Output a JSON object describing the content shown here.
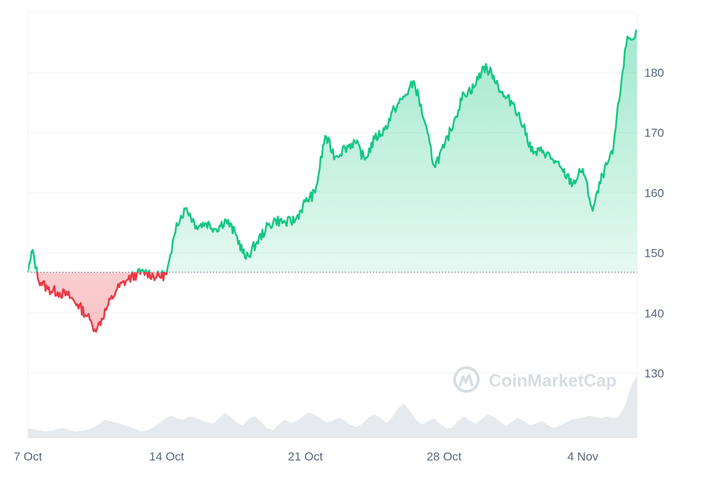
{
  "chart_data": {
    "type": "area",
    "xlabel": "",
    "ylabel": "",
    "x_ticks": [
      "7 Oct",
      "14 Oct",
      "21 Oct",
      "28 Oct",
      "4 Nov"
    ],
    "y_ticks": [
      130,
      140,
      150,
      160,
      170,
      180
    ],
    "ylim": [
      119,
      189
    ],
    "baseline": 146.8,
    "grid": true,
    "colors": {
      "up_line": "#16c784",
      "down_line": "#ea3943",
      "up_fill": "#16c784",
      "down_fill": "#ea3943",
      "grid": "#eff2f5",
      "axis_text": "#58667e",
      "volume": "#e6e9ee",
      "watermark": "#d8dde4"
    },
    "series": [
      {
        "x": [
          "2024-10-07 00:00",
          "2024-10-07 06:00",
          "2024-10-07 12:00",
          "2024-10-08 00:00",
          "2024-10-08 12:00",
          "2024-10-09 00:00",
          "2024-10-09 12:00",
          "2024-10-10 00:00",
          "2024-10-10 06:00",
          "2024-10-10 12:00",
          "2024-10-11 00:00",
          "2024-10-11 12:00",
          "2024-10-12 00:00",
          "2024-10-12 12:00",
          "2024-10-13 00:00",
          "2024-10-13 12:00",
          "2024-10-14 00:00",
          "2024-10-14 06:00",
          "2024-10-14 12:00",
          "2024-10-15 00:00",
          "2024-10-15 12:00",
          "2024-10-16 00:00",
          "2024-10-16 12:00",
          "2024-10-17 00:00",
          "2024-10-17 12:00",
          "2024-10-18 00:00",
          "2024-10-18 12:00",
          "2024-10-19 00:00",
          "2024-10-19 12:00",
          "2024-10-20 00:00",
          "2024-10-20 12:00",
          "2024-10-21 00:00",
          "2024-10-21 12:00",
          "2024-10-22 00:00",
          "2024-10-22 12:00",
          "2024-10-23 00:00",
          "2024-10-23 12:00",
          "2024-10-24 00:00",
          "2024-10-24 12:00",
          "2024-10-25 00:00",
          "2024-10-25 12:00",
          "2024-10-26 00:00",
          "2024-10-26 12:00",
          "2024-10-27 00:00",
          "2024-10-27 12:00",
          "2024-10-28 00:00",
          "2024-10-28 12:00",
          "2024-10-29 00:00",
          "2024-10-29 12:00",
          "2024-10-30 00:00",
          "2024-10-30 12:00",
          "2024-10-31 00:00",
          "2024-10-31 12:00",
          "2024-11-01 00:00",
          "2024-11-01 12:00",
          "2024-11-02 00:00",
          "2024-11-02 12:00",
          "2024-11-03 00:00",
          "2024-11-03 12:00",
          "2024-11-04 00:00",
          "2024-11-04 12:00",
          "2024-11-05 00:00",
          "2024-11-05 12:00",
          "2024-11-06 00:00",
          "2024-11-06 06:00",
          "2024-11-06 12:00",
          "2024-11-06 18:00"
        ],
        "values": [
          146.8,
          150.5,
          145.8,
          144.0,
          143.5,
          143.0,
          141.5,
          139.5,
          138.0,
          137.5,
          141.0,
          144.0,
          145.5,
          146.5,
          146.8,
          146.0,
          146.5,
          150.0,
          155.0,
          157.5,
          154.5,
          155.0,
          154.0,
          155.5,
          153.0,
          149.0,
          151.5,
          154.0,
          155.5,
          155.0,
          155.5,
          158.5,
          160.0,
          169.5,
          166.0,
          167.5,
          168.5,
          165.5,
          169.0,
          170.5,
          174.0,
          176.0,
          178.5,
          172.0,
          164.5,
          167.5,
          172.0,
          176.5,
          177.5,
          181.0,
          179.5,
          176.0,
          175.0,
          171.0,
          166.5,
          167.0,
          165.5,
          163.5,
          161.5,
          164.0,
          157.0,
          163.0,
          166.5,
          180.0,
          186.0,
          185.5,
          187.0
        ]
      }
    ],
    "volume": [
      1.5,
      1.3,
      1.2,
      1.0,
      1.1,
      1.4,
      1.6,
      1.2,
      1.0,
      1.1,
      1.3,
      1.6,
      2.2,
      2.8,
      2.5,
      2.3,
      2.0,
      1.7,
      1.4,
      1.0,
      1.2,
      1.6,
      2.3,
      3.0,
      3.4,
      3.0,
      2.8,
      3.3,
      3.1,
      2.7,
      2.4,
      2.2,
      3.0,
      3.8,
      3.2,
      2.3,
      1.9,
      3.0,
      3.3,
      2.5,
      1.5,
      1.2,
      2.1,
      2.8,
      2.3,
      2.6,
      3.3,
      3.9,
      3.5,
      3.0,
      2.4,
      2.6,
      3.1,
      2.7,
      2.0,
      1.7,
      2.2,
      3.1,
      3.6,
      3.1,
      2.3,
      3.2,
      4.6,
      5.2,
      4.0,
      2.7,
      2.1,
      2.6,
      3.0,
      2.2,
      1.5,
      1.6,
      2.6,
      3.3,
      2.6,
      2.2,
      2.9,
      3.6,
      3.2,
      2.5,
      1.8,
      2.5,
      3.1,
      2.6,
      2.0,
      2.2,
      2.6,
      2.0,
      1.5,
      1.9,
      2.4,
      2.8,
      3.0,
      3.1,
      3.4,
      3.2,
      3.0,
      3.3,
      3.0,
      3.4,
      5.0,
      8.0,
      9.5
    ],
    "watermark": "CoinMarketCap"
  }
}
